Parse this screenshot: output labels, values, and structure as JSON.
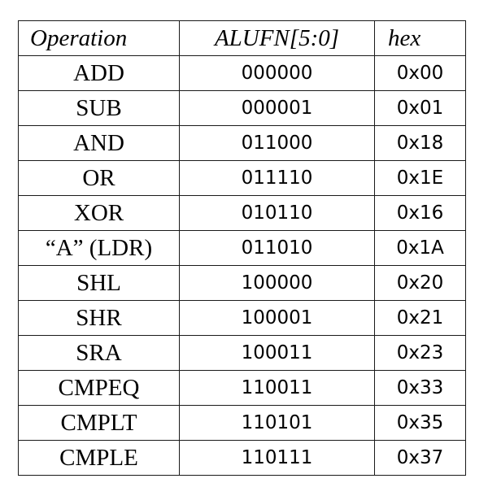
{
  "table": {
    "headers": {
      "operation": "Operation",
      "alufn": "ALUFN[5:0]",
      "hex": "hex"
    },
    "rows": [
      {
        "operation": "ADD",
        "alufn": "000000",
        "hex": "0x00"
      },
      {
        "operation": "SUB",
        "alufn": "000001",
        "hex": "0x01"
      },
      {
        "operation": "AND",
        "alufn": "011000",
        "hex": "0x18"
      },
      {
        "operation": "OR",
        "alufn": "011110",
        "hex": "0x1E"
      },
      {
        "operation": "XOR",
        "alufn": "010110",
        "hex": "0x16"
      },
      {
        "operation": "“A” (LDR)",
        "alufn": "011010",
        "hex": "0x1A"
      },
      {
        "operation": "SHL",
        "alufn": "100000",
        "hex": "0x20"
      },
      {
        "operation": "SHR",
        "alufn": "100001",
        "hex": "0x21"
      },
      {
        "operation": "SRA",
        "alufn": "100011",
        "hex": "0x23"
      },
      {
        "operation": "CMPEQ",
        "alufn": "110011",
        "hex": "0x33"
      },
      {
        "operation": "CMPLT",
        "alufn": "110101",
        "hex": "0x35"
      },
      {
        "operation": "CMPLE",
        "alufn": "110111",
        "hex": "0x37"
      }
    ]
  }
}
